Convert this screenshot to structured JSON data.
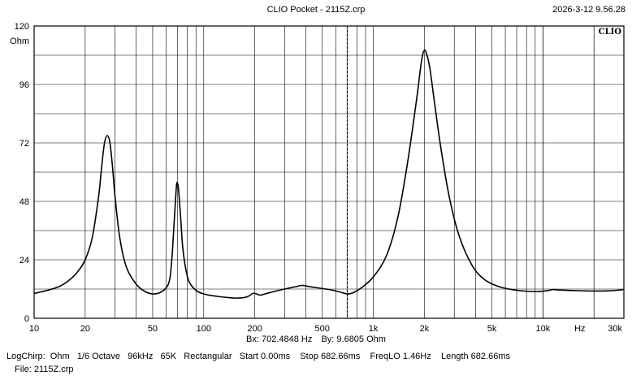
{
  "window": {
    "title": "CLIO Pocket - 2115Z.crp",
    "datetime": "2026-3-12 9.56.28"
  },
  "chart_data": {
    "type": "line",
    "xscale": "log",
    "xlim": [
      10,
      30000
    ],
    "ylim": [
      0,
      120
    ],
    "y_unit_label": "Ohm",
    "x_unit_label": "Hz",
    "logo": "CLIO",
    "grid": true,
    "x_ticks": [
      {
        "value": 10,
        "label": "10"
      },
      {
        "value": 20,
        "label": "20"
      },
      {
        "value": 50,
        "label": "50"
      },
      {
        "value": 100,
        "label": "100"
      },
      {
        "value": 200,
        "label": "200"
      },
      {
        "value": 500,
        "label": "500"
      },
      {
        "value": 1000,
        "label": "1k"
      },
      {
        "value": 2000,
        "label": "2k"
      },
      {
        "value": 5000,
        "label": "5k"
      },
      {
        "value": 10000,
        "label": "10k"
      },
      {
        "value": 30000,
        "label": "30k"
      }
    ],
    "y_ticks": [
      {
        "value": 0,
        "label": "0"
      },
      {
        "value": 24,
        "label": "24"
      },
      {
        "value": 48,
        "label": "48"
      },
      {
        "value": 72,
        "label": "72"
      },
      {
        "value": 96,
        "label": "96"
      },
      {
        "value": 120,
        "label": "120"
      }
    ],
    "cursor_x": 702.4848,
    "series": [
      {
        "color": "#000000",
        "points": [
          [
            10,
            10.2
          ],
          [
            12,
            11.5
          ],
          [
            14,
            13
          ],
          [
            16,
            15.5
          ],
          [
            18,
            19
          ],
          [
            20,
            24
          ],
          [
            22,
            33
          ],
          [
            24,
            50
          ],
          [
            25,
            62
          ],
          [
            26,
            72
          ],
          [
            27,
            75
          ],
          [
            28,
            72
          ],
          [
            29,
            62
          ],
          [
            30,
            50
          ],
          [
            32,
            33
          ],
          [
            35,
            21
          ],
          [
            40,
            14
          ],
          [
            45,
            11
          ],
          [
            50,
            10
          ],
          [
            55,
            10.5
          ],
          [
            60,
            12.5
          ],
          [
            63,
            16
          ],
          [
            65,
            25
          ],
          [
            67,
            40
          ],
          [
            69,
            54
          ],
          [
            70,
            55.5
          ],
          [
            71,
            53
          ],
          [
            73,
            42
          ],
          [
            75,
            30
          ],
          [
            78,
            21
          ],
          [
            82,
            15
          ],
          [
            90,
            11.5
          ],
          [
            100,
            10
          ],
          [
            120,
            9
          ],
          [
            140,
            8.5
          ],
          [
            160,
            8.3
          ],
          [
            180,
            8.8
          ],
          [
            195,
            10.2
          ],
          [
            205,
            10
          ],
          [
            215,
            9.5
          ],
          [
            230,
            10
          ],
          [
            260,
            11
          ],
          [
            300,
            12
          ],
          [
            350,
            13
          ],
          [
            380,
            13.5
          ],
          [
            420,
            13
          ],
          [
            470,
            12.5
          ],
          [
            550,
            11.8
          ],
          [
            620,
            11
          ],
          [
            700,
            10
          ],
          [
            760,
            10.5
          ],
          [
            850,
            12.5
          ],
          [
            1000,
            17
          ],
          [
            1200,
            26
          ],
          [
            1400,
            42
          ],
          [
            1600,
            65
          ],
          [
            1800,
            90
          ],
          [
            1900,
            103
          ],
          [
            1950,
            108
          ],
          [
            2000,
            110
          ],
          [
            2050,
            109
          ],
          [
            2150,
            103
          ],
          [
            2300,
            88
          ],
          [
            2500,
            70
          ],
          [
            2800,
            50
          ],
          [
            3200,
            34
          ],
          [
            3800,
            22
          ],
          [
            4500,
            16
          ],
          [
            5500,
            13
          ],
          [
            7000,
            11.5
          ],
          [
            9000,
            11
          ],
          [
            10500,
            11.3
          ],
          [
            11500,
            11.8
          ],
          [
            12500,
            11.6
          ],
          [
            15000,
            11.4
          ],
          [
            20000,
            11.2
          ],
          [
            25000,
            11.3
          ],
          [
            30000,
            11.8
          ]
        ]
      }
    ],
    "readout": {
      "bx": "Bx: 702.4848 Hz",
      "by": "By: 9.6805 Ohm"
    }
  },
  "footer": {
    "settings": "LogChirp:  Ohm   1/6 Octave   96kHz   65K   Rectangular   Start 0.00ms    Stop 682.66ms    FreqLO 1.46Hz    Length 682.66ms",
    "file": "File: 2115Z.crp"
  }
}
